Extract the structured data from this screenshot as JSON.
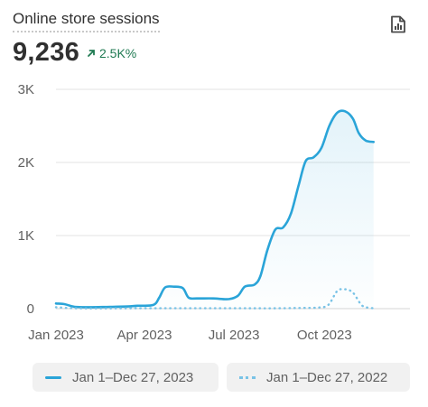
{
  "card": {
    "title": "Online store sessions",
    "total": "9,236",
    "change": "2.5K%",
    "report_icon": "report-icon"
  },
  "colors": {
    "current": "#2aa4d8",
    "comparison": "#79c3e6",
    "positive": "#1f7a52",
    "grid": "#e3e3e3"
  },
  "chart_data": {
    "type": "line",
    "x_ticks": [
      {
        "date": "2023-01-01",
        "label": "Jan 2023"
      },
      {
        "date": "2023-04-01",
        "label": "Apr 2023"
      },
      {
        "date": "2023-07-01",
        "label": "Jul 2023"
      },
      {
        "date": "2023-10-01",
        "label": "Oct 2023"
      }
    ],
    "y_ticks": [
      {
        "value": 0,
        "label": "0"
      },
      {
        "value": 1000,
        "label": "1K"
      },
      {
        "value": 2000,
        "label": "2K"
      },
      {
        "value": 3000,
        "label": "3K"
      }
    ],
    "ylim": [
      0,
      3000
    ],
    "xlim": [
      "2023-01-01",
      "2023-12-27"
    ],
    "grid": true,
    "legend_position": "bottom",
    "series": [
      {
        "name": "Jan 1–Dec 27, 2023",
        "style": "solid",
        "points": [
          [
            "2023-01-01",
            70
          ],
          [
            "2023-01-10",
            60
          ],
          [
            "2023-01-20",
            25
          ],
          [
            "2023-02-05",
            20
          ],
          [
            "2023-02-25",
            25
          ],
          [
            "2023-03-15",
            30
          ],
          [
            "2023-03-25",
            40
          ],
          [
            "2023-04-10",
            50
          ],
          [
            "2023-04-16",
            150
          ],
          [
            "2023-04-22",
            290
          ],
          [
            "2023-05-01",
            300
          ],
          [
            "2023-05-10",
            280
          ],
          [
            "2023-05-16",
            150
          ],
          [
            "2023-05-25",
            140
          ],
          [
            "2023-06-10",
            140
          ],
          [
            "2023-06-25",
            130
          ],
          [
            "2023-07-05",
            175
          ],
          [
            "2023-07-12",
            300
          ],
          [
            "2023-07-22",
            330
          ],
          [
            "2023-07-28",
            450
          ],
          [
            "2023-08-04",
            800
          ],
          [
            "2023-08-12",
            1080
          ],
          [
            "2023-08-20",
            1110
          ],
          [
            "2023-08-28",
            1300
          ],
          [
            "2023-09-05",
            1700
          ],
          [
            "2023-09-12",
            2020
          ],
          [
            "2023-09-20",
            2070
          ],
          [
            "2023-09-28",
            2200
          ],
          [
            "2023-10-06",
            2500
          ],
          [
            "2023-10-14",
            2680
          ],
          [
            "2023-10-22",
            2700
          ],
          [
            "2023-10-30",
            2600
          ],
          [
            "2023-11-05",
            2400
          ],
          [
            "2023-11-12",
            2300
          ],
          [
            "2023-11-20",
            2280
          ]
        ]
      },
      {
        "name": "Jan 1–Dec 27, 2022",
        "style": "dotted",
        "points": [
          [
            "2023-01-01",
            20
          ],
          [
            "2023-01-20",
            5
          ],
          [
            "2023-02-15",
            3
          ],
          [
            "2023-04-01",
            5
          ],
          [
            "2023-07-01",
            5
          ],
          [
            "2023-08-15",
            5
          ],
          [
            "2023-09-10",
            10
          ],
          [
            "2023-09-25",
            15
          ],
          [
            "2023-10-05",
            50
          ],
          [
            "2023-10-14",
            240
          ],
          [
            "2023-10-22",
            265
          ],
          [
            "2023-10-30",
            220
          ],
          [
            "2023-11-07",
            60
          ],
          [
            "2023-11-12",
            20
          ],
          [
            "2023-11-20",
            5
          ]
        ]
      }
    ]
  }
}
